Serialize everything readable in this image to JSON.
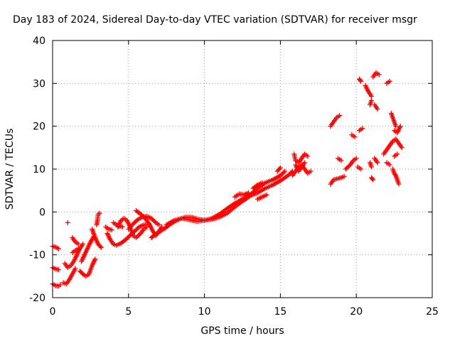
{
  "chart_data": {
    "type": "scatter",
    "title": "Day 183 of 2024, Sidereal Day-to-day VTEC variation (SDTVAR) for receiver msgr",
    "xlabel": "GPS time / hours",
    "ylabel": "SDTVAR / TECUs",
    "xlim": [
      0,
      25
    ],
    "ylim": [
      -20,
      40
    ],
    "xticks": [
      0,
      5,
      10,
      15,
      20,
      25
    ],
    "yticks": [
      -20,
      -10,
      0,
      10,
      20,
      30,
      40
    ],
    "xtick_labels": [
      "0",
      "5",
      "10",
      "15",
      "20",
      "25"
    ],
    "ytick_labels": [
      "-20",
      "-10",
      "0",
      "10",
      "20",
      "30",
      "40"
    ],
    "grid": true,
    "marker": "plus",
    "series_color": "#ff0000",
    "tracks": [
      {
        "name": "t1",
        "points": [
          [
            0.0,
            -8.0
          ],
          [
            0.2,
            -8.2
          ],
          [
            0.4,
            -8.6
          ]
        ]
      },
      {
        "name": "t2",
        "points": [
          [
            0.0,
            -13.0
          ],
          [
            0.2,
            -13.3
          ],
          [
            0.4,
            -13.5
          ]
        ]
      },
      {
        "name": "t3",
        "points": [
          [
            0.0,
            -16.8
          ],
          [
            0.2,
            -17.2
          ],
          [
            0.4,
            -17.3
          ],
          [
            0.5,
            -17.0
          ]
        ]
      },
      {
        "name": "t4",
        "points": [
          [
            0.7,
            -16.5
          ],
          [
            0.9,
            -16.8
          ],
          [
            1.1,
            -15.8
          ],
          [
            1.3,
            -14.5
          ],
          [
            1.5,
            -13.2
          ]
        ]
      },
      {
        "name": "t5",
        "points": [
          [
            0.8,
            -12.0
          ],
          [
            1.0,
            -13.0
          ],
          [
            1.2,
            -12.5
          ],
          [
            1.4,
            -11.5
          ],
          [
            1.6,
            -10.0
          ],
          [
            1.8,
            -8.5
          ],
          [
            2.0,
            -7.5
          ]
        ]
      },
      {
        "name": "t6",
        "points": [
          [
            1.0,
            -2.5
          ]
        ]
      },
      {
        "name": "t7",
        "points": [
          [
            1.3,
            -9.5
          ],
          [
            1.5,
            -9.0
          ],
          [
            1.7,
            -8.5
          ]
        ]
      },
      {
        "name": "t8",
        "points": [
          [
            1.3,
            -6.0
          ],
          [
            1.5,
            -7.0
          ],
          [
            1.7,
            -7.5
          ]
        ]
      },
      {
        "name": "t9",
        "points": [
          [
            1.8,
            -13.8
          ],
          [
            2.0,
            -14.5
          ],
          [
            2.2,
            -15.0
          ],
          [
            2.4,
            -14.5
          ],
          [
            2.6,
            -12.5
          ],
          [
            2.8,
            -11.0
          ]
        ]
      },
      {
        "name": "t10",
        "points": [
          [
            1.9,
            -11.5
          ],
          [
            2.1,
            -10.0
          ],
          [
            2.3,
            -8.5
          ],
          [
            2.5,
            -7.0
          ],
          [
            2.7,
            -5.8
          ]
        ]
      },
      {
        "name": "t11",
        "points": [
          [
            2.6,
            -4.0
          ],
          [
            2.8,
            -6.0
          ],
          [
            3.0,
            -7.5
          ],
          [
            3.2,
            -8.3
          ]
        ]
      },
      {
        "name": "t12",
        "points": [
          [
            2.9,
            -3.0
          ],
          [
            2.95,
            -2.0
          ],
          [
            3.0,
            -0.5
          ],
          [
            3.1,
            -0.3
          ]
        ]
      },
      {
        "name": "t13",
        "points": [
          [
            3.5,
            -3.5
          ],
          [
            3.7,
            -4.0
          ],
          [
            3.9,
            -4.2
          ]
        ]
      },
      {
        "name": "t14",
        "points": [
          [
            3.6,
            -5.0
          ],
          [
            3.8,
            -6.5
          ],
          [
            4.0,
            -7.5
          ],
          [
            4.2,
            -7.8
          ],
          [
            4.5,
            -7.3
          ],
          [
            4.8,
            -6.5
          ],
          [
            5.1,
            -5.5
          ],
          [
            5.4,
            -4.5
          ],
          [
            5.7,
            -3.5
          ],
          [
            6.0,
            -3.0
          ],
          [
            6.3,
            -3.0
          ]
        ]
      },
      {
        "name": "t15",
        "points": [
          [
            4.3,
            -3.5
          ],
          [
            4.5,
            -2.0
          ],
          [
            4.7,
            -1.5
          ],
          [
            4.9,
            -2.0
          ],
          [
            5.1,
            -3.5
          ],
          [
            5.3,
            -5.5
          ],
          [
            5.5,
            -6.0
          ],
          [
            5.8,
            -5.0
          ],
          [
            6.0,
            -4.0
          ],
          [
            6.2,
            -3.5
          ]
        ]
      },
      {
        "name": "t16",
        "points": [
          [
            4.0,
            -2.5
          ],
          [
            4.3,
            -3.2
          ],
          [
            4.6,
            -3.5
          ]
        ]
      },
      {
        "name": "t17",
        "points": [
          [
            5.0,
            -4.0
          ],
          [
            5.3,
            -2.8
          ],
          [
            5.6,
            -1.8
          ],
          [
            5.9,
            -1.2
          ],
          [
            6.2,
            -1.0
          ],
          [
            6.5,
            -1.5
          ],
          [
            6.8,
            -2.5
          ],
          [
            7.0,
            -3.0
          ]
        ]
      },
      {
        "name": "t18",
        "points": [
          [
            5.5,
            0.3
          ],
          [
            5.8,
            -0.5
          ],
          [
            6.1,
            -1.5
          ],
          [
            6.4,
            -3.0
          ],
          [
            6.6,
            -4.5
          ],
          [
            6.8,
            -5.5
          ],
          [
            7.0,
            -4.5
          ],
          [
            7.2,
            -3.5
          ]
        ]
      },
      {
        "name": "t19",
        "points": [
          [
            6.5,
            -6.0
          ],
          [
            6.8,
            -5.2
          ],
          [
            7.1,
            -4.5
          ],
          [
            7.4,
            -3.8
          ],
          [
            7.7,
            -3.0
          ],
          [
            8.0,
            -2.3
          ],
          [
            8.4,
            -1.6
          ],
          [
            8.8,
            -1.2
          ],
          [
            9.2,
            -1.3
          ],
          [
            9.6,
            -1.7
          ],
          [
            10.0,
            -1.9
          ],
          [
            10.5,
            -1.7
          ],
          [
            11.0,
            -1.2
          ],
          [
            11.5,
            -0.3
          ],
          [
            12.0,
            1.2
          ],
          [
            12.5,
            2.5
          ],
          [
            13.0,
            3.7
          ],
          [
            13.5,
            4.5
          ],
          [
            14.0,
            5.5
          ],
          [
            14.5,
            6.3
          ],
          [
            15.0,
            7.3
          ],
          [
            15.5,
            8.5
          ],
          [
            15.8,
            9.5
          ]
        ]
      },
      {
        "name": "t20",
        "points": [
          [
            7.5,
            -3.0
          ],
          [
            8.0,
            -2.0
          ],
          [
            8.5,
            -1.5
          ],
          [
            9.0,
            -1.8
          ],
          [
            9.5,
            -2.2
          ],
          [
            10.0,
            -2.0
          ],
          [
            10.5,
            -1.5
          ],
          [
            11.0,
            -0.5
          ],
          [
            11.5,
            0.8
          ],
          [
            12.0,
            2.0
          ],
          [
            12.5,
            3.0
          ],
          [
            13.0,
            4.0
          ],
          [
            13.5,
            5.5
          ],
          [
            14.0,
            6.8
          ],
          [
            14.5,
            7.5
          ],
          [
            15.0,
            8.5
          ],
          [
            15.3,
            9.5
          ]
        ]
      },
      {
        "name": "t21",
        "points": [
          [
            12.0,
            3.5
          ],
          [
            12.3,
            4.2
          ],
          [
            12.6,
            4.0
          ],
          [
            12.9,
            4.5
          ]
        ]
      },
      {
        "name": "t22",
        "points": [
          [
            13.2,
            5.5
          ],
          [
            13.5,
            6.3
          ],
          [
            13.8,
            6.8
          ]
        ]
      },
      {
        "name": "t23",
        "points": [
          [
            13.5,
            3.0
          ],
          [
            13.8,
            3.5
          ],
          [
            14.1,
            4.0
          ]
        ]
      },
      {
        "name": "t24",
        "points": [
          [
            14.8,
            9.5
          ],
          [
            15.0,
            10.3
          ]
        ]
      },
      {
        "name": "t25",
        "points": [
          [
            15.8,
            8.5
          ],
          [
            16.0,
            9.5
          ],
          [
            16.2,
            10.5
          ],
          [
            16.4,
            11.0
          ],
          [
            16.6,
            10.0
          ],
          [
            16.8,
            9.0
          ],
          [
            17.0,
            9.5
          ]
        ]
      },
      {
        "name": "t26",
        "points": [
          [
            15.9,
            13.5
          ],
          [
            16.0,
            12.0
          ],
          [
            16.2,
            11.5
          ],
          [
            16.4,
            12.5
          ],
          [
            16.6,
            13.5
          ],
          [
            16.8,
            13.0
          ]
        ]
      },
      {
        "name": "t27",
        "points": [
          [
            16.0,
            11.0
          ],
          [
            16.2,
            9.5
          ],
          [
            16.4,
            10.5
          ],
          [
            16.6,
            11.5
          ]
        ]
      },
      {
        "name": "t28",
        "points": [
          [
            18.3,
            6.5
          ],
          [
            18.5,
            7.5
          ],
          [
            18.8,
            7.8
          ],
          [
            19.0,
            8.0
          ],
          [
            19.2,
            8.3
          ]
        ]
      },
      {
        "name": "t29",
        "points": [
          [
            18.3,
            20.0
          ],
          [
            18.5,
            21.0
          ],
          [
            18.7,
            22.0
          ],
          [
            18.9,
            22.5
          ]
        ]
      },
      {
        "name": "t30",
        "points": [
          [
            18.8,
            12.5
          ],
          [
            19.0,
            12.0
          ]
        ]
      },
      {
        "name": "t31",
        "points": [
          [
            19.3,
            10.0
          ],
          [
            19.6,
            11.0
          ],
          [
            19.8,
            12.0
          ],
          [
            20.0,
            12.5
          ]
        ]
      },
      {
        "name": "t32",
        "points": [
          [
            19.7,
            18.0
          ],
          [
            19.9,
            17.5
          ]
        ]
      },
      {
        "name": "t33",
        "points": [
          [
            20.1,
            10.5
          ],
          [
            20.3,
            10.0
          ]
        ]
      },
      {
        "name": "t34",
        "points": [
          [
            20.2,
            19.0
          ],
          [
            20.4,
            19.5
          ]
        ]
      },
      {
        "name": "t35",
        "points": [
          [
            20.2,
            31.0
          ],
          [
            20.3,
            30.5
          ]
        ]
      },
      {
        "name": "t36",
        "points": [
          [
            20.6,
            29.5
          ],
          [
            20.8,
            28.0
          ],
          [
            21.0,
            27.0
          ]
        ]
      },
      {
        "name": "t37",
        "points": [
          [
            20.9,
            25.0
          ],
          [
            21.0,
            26.0
          ]
        ]
      },
      {
        "name": "t38",
        "points": [
          [
            20.9,
            11.5
          ],
          [
            21.0,
            10.5
          ]
        ]
      },
      {
        "name": "t39",
        "points": [
          [
            21.0,
            8.0
          ],
          [
            21.1,
            7.5
          ]
        ]
      },
      {
        "name": "t40",
        "points": [
          [
            21.1,
            31.5
          ],
          [
            21.3,
            32.5
          ],
          [
            21.5,
            32.0
          ]
        ]
      },
      {
        "name": "t41",
        "points": [
          [
            21.2,
            25.0
          ],
          [
            21.4,
            24.0
          ]
        ]
      },
      {
        "name": "t42",
        "points": [
          [
            21.2,
            12.5
          ],
          [
            21.4,
            11.5
          ]
        ]
      },
      {
        "name": "t43",
        "points": [
          [
            21.8,
            13.5
          ],
          [
            22.0,
            14.5
          ],
          [
            22.2,
            15.5
          ],
          [
            22.4,
            16.5
          ],
          [
            22.6,
            17.0
          ],
          [
            22.8,
            16.0
          ],
          [
            23.0,
            15.0
          ]
        ]
      },
      {
        "name": "t44",
        "points": [
          [
            22.0,
            30.0
          ],
          [
            22.2,
            30.5
          ]
        ]
      },
      {
        "name": "t45",
        "points": [
          [
            22.0,
            11.5
          ],
          [
            22.2,
            11.0
          ]
        ]
      },
      {
        "name": "t46",
        "points": [
          [
            22.3,
            23.0
          ],
          [
            22.4,
            22.0
          ],
          [
            22.5,
            21.0
          ],
          [
            22.6,
            20.0
          ]
        ]
      },
      {
        "name": "t47",
        "points": [
          [
            22.5,
            19.0
          ],
          [
            22.7,
            18.5
          ],
          [
            22.9,
            20.0
          ]
        ]
      },
      {
        "name": "t48",
        "points": [
          [
            22.4,
            10.0
          ],
          [
            22.5,
            9.0
          ],
          [
            22.6,
            8.5
          ],
          [
            22.7,
            7.5
          ],
          [
            22.8,
            6.5
          ]
        ]
      },
      {
        "name": "t49",
        "points": [
          [
            22.5,
            13.0
          ],
          [
            22.7,
            13.5
          ]
        ]
      }
    ]
  }
}
